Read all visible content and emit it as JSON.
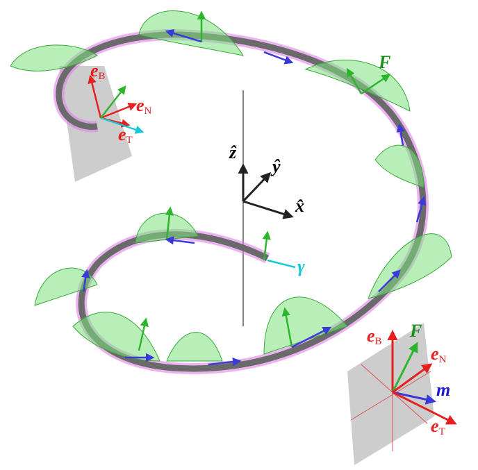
{
  "left_frame": {
    "e_B": {
      "symbol": "e",
      "sub": "B"
    },
    "e_N": {
      "symbol": "e",
      "sub": "N"
    },
    "e_T": {
      "symbol": "e",
      "sub": "T"
    }
  },
  "axes": {
    "z": "ẑ",
    "y": "ŷ",
    "x": "x̂"
  },
  "curve_label": "γ",
  "force_label": "F",
  "right_frame": {
    "e_B": {
      "symbol": "e",
      "sub": "B"
    },
    "F": "F",
    "e_N": {
      "symbol": "e",
      "sub": "N"
    },
    "m": "m",
    "e_T": {
      "symbol": "e",
      "sub": "T"
    }
  }
}
